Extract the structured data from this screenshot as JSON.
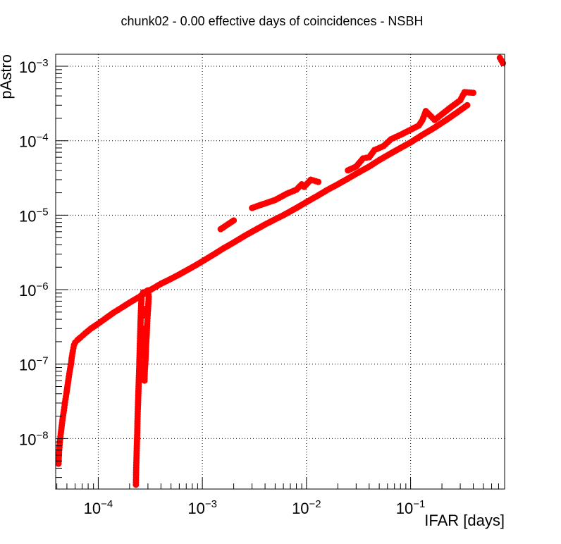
{
  "chart_data": {
    "type": "scatter",
    "title": "chunk02 - 0.00 effective days of coincidences - NSBH",
    "xlabel": "IFAR [days]",
    "ylabel": "pAstro",
    "xscale": "log",
    "yscale": "log",
    "xlim": [
      3.9e-05,
      0.8
    ],
    "ylim": [
      2.1e-09,
      0.00145
    ],
    "grid": true,
    "marker_color": "#ff0000",
    "x_ticks": [
      {
        "value": 0.0001,
        "base": "10",
        "exp": "−4"
      },
      {
        "value": 0.001,
        "base": "10",
        "exp": "−3"
      },
      {
        "value": 0.01,
        "base": "10",
        "exp": "−2"
      },
      {
        "value": 0.1,
        "base": "10",
        "exp": "−1"
      }
    ],
    "y_ticks": [
      {
        "value": 1e-08,
        "base": "10",
        "exp": "−8"
      },
      {
        "value": 1e-07,
        "base": "10",
        "exp": "−7"
      },
      {
        "value": 1e-06,
        "base": "10",
        "exp": "−6"
      },
      {
        "value": 1e-05,
        "base": "10",
        "exp": "−5"
      },
      {
        "value": 0.0001,
        "base": "10",
        "exp": "−4"
      },
      {
        "value": 0.001,
        "base": "10",
        "exp": "−3"
      }
    ],
    "series": [
      {
        "points": [
          [
            4.15e-05,
            4.6e-09
          ],
          [
            4.2e-05,
            6.5e-09
          ],
          [
            4.28e-05,
            9e-09
          ],
          [
            4.36e-05,
            1.15e-08
          ],
          [
            4.46e-05,
            1.5e-08
          ],
          [
            4.56e-05,
            1.9e-08
          ],
          [
            4.68e-05,
            2.4e-08
          ],
          [
            4.8e-05,
            3.1e-08
          ],
          [
            4.94e-05,
            4e-08
          ],
          [
            5.08e-05,
            5.2e-08
          ],
          [
            5.22e-05,
            6.8e-08
          ],
          [
            5.32e-05,
            8e-08
          ],
          [
            5.5e-05,
            1.05e-07
          ],
          [
            5.55e-05,
            1.2e-07
          ],
          [
            5.7e-05,
            1.5e-07
          ],
          [
            5.85e-05,
            1.8e-07
          ],
          [
            6e-05,
            1.95e-07
          ],
          [
            6.3e-05,
            2.1e-07
          ],
          [
            6.8e-05,
            2.3e-07
          ],
          [
            7.5e-05,
            2.6e-07
          ],
          [
            8.5e-05,
            3e-07
          ],
          [
            0.0001,
            3.5e-07
          ],
          [
            0.00012,
            4.2e-07
          ],
          [
            0.00014,
            4.9e-07
          ],
          [
            0.00017,
            5.8e-07
          ],
          [
            0.0002,
            6.7e-07
          ],
          [
            0.00024,
            7.8e-07
          ],
          [
            0.00028,
            8.9e-07
          ],
          [
            0.00032,
            1e-06
          ],
          [
            0.0004,
            1.2e-06
          ],
          [
            0.0005,
            1.4e-06
          ],
          [
            0.0006,
            1.6e-06
          ],
          [
            0.0008,
            2e-06
          ],
          [
            0.001,
            2.4e-06
          ],
          [
            0.0013,
            3e-06
          ],
          [
            0.0016,
            3.6e-06
          ],
          [
            0.002,
            4.3e-06
          ],
          [
            0.0025,
            5.2e-06
          ],
          [
            0.003,
            6e-06
          ],
          [
            0.004,
            7.5e-06
          ],
          [
            0.005,
            8.8e-06
          ],
          [
            0.006,
            1e-05
          ],
          [
            0.008,
            1.25e-05
          ],
          [
            0.01,
            1.5e-05
          ],
          [
            0.013,
            1.85e-05
          ],
          [
            0.016,
            2.2e-05
          ],
          [
            0.02,
            2.6e-05
          ],
          [
            0.025,
            3.1e-05
          ],
          [
            0.03,
            3.6e-05
          ],
          [
            0.04,
            4.5e-05
          ],
          [
            0.05,
            5.5e-05
          ],
          [
            0.065,
            6.8e-05
          ],
          [
            0.08,
            8e-05
          ],
          [
            0.1,
            9.5e-05
          ],
          [
            0.13,
            0.00012
          ],
          [
            0.17,
            0.00015
          ],
          [
            0.22,
            0.00019
          ],
          [
            0.28,
            0.00024
          ],
          [
            0.35,
            0.0003
          ]
        ]
      },
      {
        "points": [
          [
            0.00023,
            2.4e-09
          ],
          [
            0.000231,
            3.5e-09
          ],
          [
            0.000233,
            5.5e-09
          ],
          [
            0.000235,
            8.5e-09
          ],
          [
            0.000237,
            1.2e-08
          ],
          [
            0.000238,
            1.7e-08
          ],
          [
            0.00024,
            2.5e-08
          ],
          [
            0.000242,
            3.5e-08
          ],
          [
            0.000244,
            5e-08
          ],
          [
            0.000246,
            7e-08
          ],
          [
            0.000248,
            1e-07
          ],
          [
            0.00025,
            1.5e-07
          ],
          [
            0.000252,
            2.2e-07
          ],
          [
            0.000254,
            3.2e-07
          ],
          [
            0.000256,
            4.5e-07
          ],
          [
            0.000258,
            6e-07
          ],
          [
            0.00026,
            7.5e-07
          ],
          [
            0.000262,
            8.5e-07
          ],
          [
            0.00027,
            9.2e-07
          ],
          [
            0.00029,
            9.5e-07
          ],
          [
            0.0003,
            9.8e-07
          ],
          [
            0.000305,
            8e-07
          ],
          [
            0.000302,
            6e-07
          ],
          [
            0.000298,
            4.5e-07
          ],
          [
            0.000295,
            3.5e-07
          ],
          [
            0.000292,
            2.5e-07
          ],
          [
            0.000288,
            1.8e-07
          ],
          [
            0.000285,
            1.2e-07
          ],
          [
            0.00028,
            8e-08
          ],
          [
            0.000278,
            6e-08
          ],
          [
            0.000272,
            4.5e-07
          ],
          [
            0.000276,
            5.5e-07
          ],
          [
            0.000266,
            1.3e-07
          ],
          [
            0.000268,
            3e-07
          ]
        ]
      },
      {
        "points": [
          [
            0.025,
            4e-05
          ],
          [
            0.03,
            4.5e-05
          ],
          [
            0.035,
            5.8e-05
          ],
          [
            0.04,
            6e-05
          ],
          [
            0.045,
            7.5e-05
          ],
          [
            0.05,
            8e-05
          ],
          [
            0.055,
            8.5e-05
          ],
          [
            0.065,
            0.000105
          ],
          [
            0.08,
            0.00012
          ],
          [
            0.12,
            0.00016
          ],
          [
            0.13,
            0.00019
          ],
          [
            0.14,
            0.00025
          ],
          [
            0.17,
            0.00019
          ],
          [
            0.25,
            0.00029
          ],
          [
            0.3,
            0.00035
          ],
          [
            0.33,
            0.00045
          ],
          [
            0.4,
            0.00044
          ],
          [
            0.72,
            0.0013
          ],
          [
            0.77,
            0.0011
          ],
          [
            0.003,
            1.25e-05
          ],
          [
            0.0035,
            1.35e-05
          ],
          [
            0.005,
            1.6e-05
          ],
          [
            0.0065,
            1.95e-05
          ],
          [
            0.008,
            2.2e-05
          ],
          [
            0.009,
            2.6e-05
          ],
          [
            0.0095,
            2.4e-05
          ],
          [
            0.011,
            3e-05
          ],
          [
            0.013,
            2.8e-05
          ],
          [
            0.0015,
            6.5e-06
          ],
          [
            0.002,
            8.5e-06
          ]
        ]
      }
    ]
  }
}
